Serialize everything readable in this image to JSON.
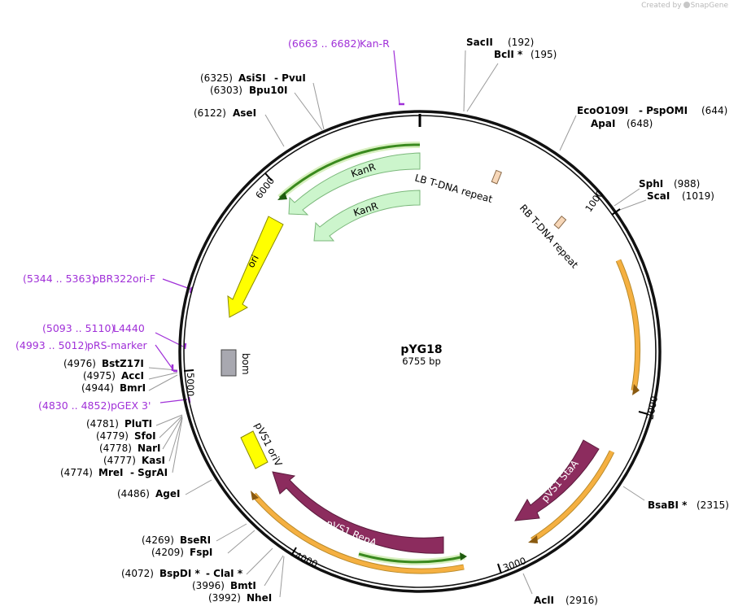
{
  "credit": {
    "created_by": "Created by",
    "brand": "SnapGene"
  },
  "plasmid": {
    "name": "pYG18",
    "size": "6755 bp"
  },
  "ticks": [
    "1000",
    "2000",
    "3000",
    "4000",
    "5000",
    "6000"
  ],
  "features": {
    "kanr1": "KanR",
    "kanr2": "KanR",
    "ori": "ori",
    "bom": "bom",
    "lb": "LB T-DNA repeat",
    "rb": "RB T-DNA repeat",
    "stab": "pVS1 StaA",
    "repa": "pVS1 RepA",
    "oriv": "pVS1 oriV"
  },
  "primers": [
    {
      "range": "(6663 .. 6682)",
      "name": "Kan-R"
    },
    {
      "range": "(5344 .. 5363)",
      "name": "pBR322ori-F"
    },
    {
      "range": "(5093 .. 5110)",
      "name": "L4440"
    },
    {
      "range": "(4993 .. 5012)",
      "name": "pRS-marker"
    },
    {
      "range": "(4830 .. 4852)",
      "name": "pGEX 3'"
    }
  ],
  "sites_right": [
    {
      "name": "SacII",
      "pos": "(192)"
    },
    {
      "name": "BclI *",
      "pos": "(195)"
    },
    {
      "name": "EcoO109I",
      "sep": "- PspOMI",
      "pos": "(644)"
    },
    {
      "name": "ApaI",
      "pos": "(648)"
    },
    {
      "name": "SphI",
      "pos": "(988)"
    },
    {
      "name": "ScaI",
      "pos": "(1019)"
    },
    {
      "name": "BsaBI *",
      "pos": "(2315)"
    },
    {
      "name": "AclI",
      "pos": "(2916)"
    }
  ],
  "sites_left": [
    {
      "pos": "(6325)",
      "name": "AsiSI",
      "sep": "- PvuI"
    },
    {
      "pos": "(6303)",
      "name": "Bpu10I"
    },
    {
      "pos": "(6122)",
      "name": "AseI"
    },
    {
      "pos": "(4976)",
      "name": "BstZ17I"
    },
    {
      "pos": "(4975)",
      "name": "AccI"
    },
    {
      "pos": "(4944)",
      "name": "BmrI"
    },
    {
      "pos": "(4781)",
      "name": "PluTI"
    },
    {
      "pos": "(4779)",
      "name": "SfoI"
    },
    {
      "pos": "(4778)",
      "name": "NarI"
    },
    {
      "pos": "(4777)",
      "name": "KasI"
    },
    {
      "pos": "(4774)",
      "name": "MreI",
      "sep": "- SgrAI"
    },
    {
      "pos": "(4486)",
      "name": "AgeI"
    },
    {
      "pos": "(4269)",
      "name": "BseRI"
    },
    {
      "pos": "(4209)",
      "name": "FspI"
    },
    {
      "pos": "(4072)",
      "name": "BspDI *",
      "sep": "- ClaI *"
    },
    {
      "pos": "(3996)",
      "name": "BmtI"
    },
    {
      "pos": "(3992)",
      "name": "NheI"
    }
  ],
  "colors": {
    "kanr": "#ccf5cc",
    "ori": "#ffff00",
    "bom": "#a8a8b0",
    "trepeat": "#f7d7b8",
    "pvs1": "#8c2c5e",
    "orange": "#f5b041",
    "green": "#3a9c1e",
    "primer": "#a030d8"
  }
}
